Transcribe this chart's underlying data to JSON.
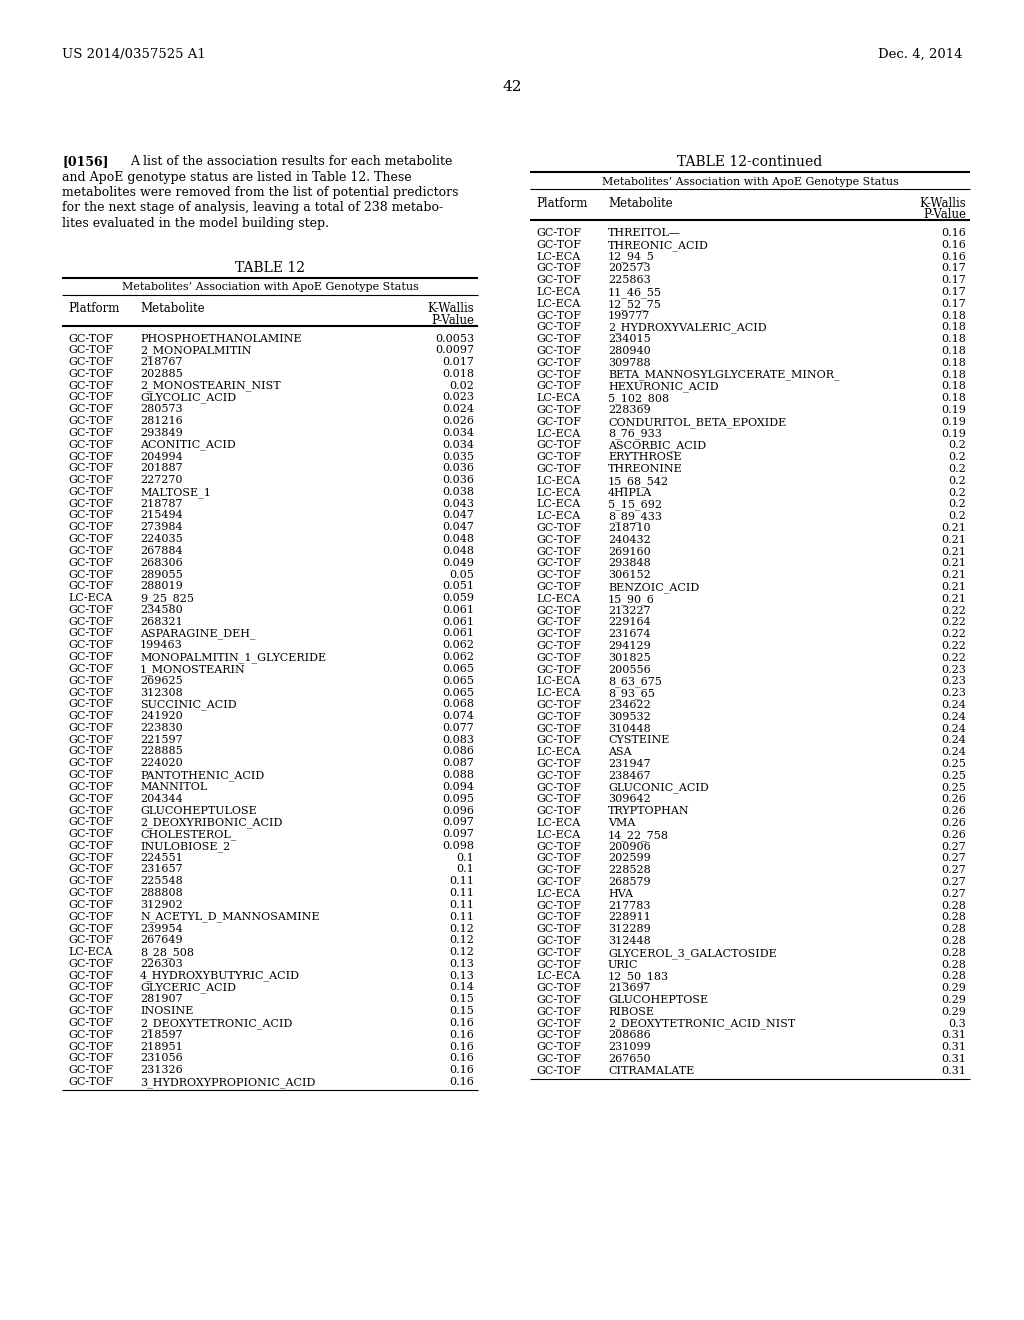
{
  "header_left": "US 2014/0357525 A1",
  "header_right": "Dec. 4, 2014",
  "page_number": "42",
  "paragraph_label": "[0156]",
  "paragraph_lines": [
    "A list of the association results for each metabolite",
    "and ApoE genotype status are listed in Table 12. These",
    "metabolites were removed from the list of potential predictors",
    "for the next stage of analysis, leaving a total of 238 metabo-",
    "lites evaluated in the model building step."
  ],
  "table1_title": "TABLE 12",
  "table1_subtitle": "Metabolites’ Association with ApoE Genotype Status",
  "table2_title": "TABLE 12-continued",
  "table2_subtitle": "Metabolites’ Association with ApoE Genotype Status",
  "table1_data": [
    [
      "GC-TOF",
      "PHOSPHOETHANOLAMINE",
      "0.0053"
    ],
    [
      "GC-TOF",
      "2_MONOPALMITIN",
      "0.0097"
    ],
    [
      "GC-TOF",
      "218767",
      "0.017"
    ],
    [
      "GC-TOF",
      "202885",
      "0.018"
    ],
    [
      "GC-TOF",
      "2_MONOSTEARIN_NIST",
      "0.02"
    ],
    [
      "GC-TOF",
      "GLYCOLIC_ACID",
      "0.023"
    ],
    [
      "GC-TOF",
      "280573",
      "0.024"
    ],
    [
      "GC-TOF",
      "281216",
      "0.026"
    ],
    [
      "GC-TOF",
      "293849",
      "0.034"
    ],
    [
      "GC-TOF",
      "ACONITIC_ACID",
      "0.034"
    ],
    [
      "GC-TOF",
      "204994",
      "0.035"
    ],
    [
      "GC-TOF",
      "201887",
      "0.036"
    ],
    [
      "GC-TOF",
      "227270",
      "0.036"
    ],
    [
      "GC-TOF",
      "MALTOSE_1",
      "0.038"
    ],
    [
      "GC-TOF",
      "218787",
      "0.043"
    ],
    [
      "GC-TOF",
      "215494",
      "0.047"
    ],
    [
      "GC-TOF",
      "273984",
      "0.047"
    ],
    [
      "GC-TOF",
      "224035",
      "0.048"
    ],
    [
      "GC-TOF",
      "267884",
      "0.048"
    ],
    [
      "GC-TOF",
      "268306",
      "0.049"
    ],
    [
      "GC-TOF",
      "289055",
      "0.05"
    ],
    [
      "GC-TOF",
      "288019",
      "0.051"
    ],
    [
      "LC-ECA",
      "9_25_825",
      "0.059"
    ],
    [
      "GC-TOF",
      "234580",
      "0.061"
    ],
    [
      "GC-TOF",
      "268321",
      "0.061"
    ],
    [
      "GC-TOF",
      "ASPARAGINE_DEH_",
      "0.061"
    ],
    [
      "GC-TOF",
      "199463",
      "0.062"
    ],
    [
      "GC-TOF",
      "MONOPALMITIN_1_GLYCERIDE",
      "0.062"
    ],
    [
      "GC-TOF",
      "1_MONOSTEARIN",
      "0.065"
    ],
    [
      "GC-TOF",
      "269625",
      "0.065"
    ],
    [
      "GC-TOF",
      "312308",
      "0.065"
    ],
    [
      "GC-TOF",
      "SUCCINIC_ACID",
      "0.068"
    ],
    [
      "GC-TOF",
      "241920",
      "0.074"
    ],
    [
      "GC-TOF",
      "223830",
      "0.077"
    ],
    [
      "GC-TOF",
      "221597",
      "0.083"
    ],
    [
      "GC-TOF",
      "228885",
      "0.086"
    ],
    [
      "GC-TOF",
      "224020",
      "0.087"
    ],
    [
      "GC-TOF",
      "PANTOTHENIC_ACID",
      "0.088"
    ],
    [
      "GC-TOF",
      "MANNITOL",
      "0.094"
    ],
    [
      "GC-TOF",
      "204344",
      "0.095"
    ],
    [
      "GC-TOF",
      "GLUCOHEPTULOSE",
      "0.096"
    ],
    [
      "GC-TOF",
      "2_DEOXYRIBONIC_ACID",
      "0.097"
    ],
    [
      "GC-TOF",
      "CHOLESTEROL_",
      "0.097"
    ],
    [
      "GC-TOF",
      "INULOBIOSE_2",
      "0.098"
    ],
    [
      "GC-TOF",
      "224551",
      "0.1"
    ],
    [
      "GC-TOF",
      "231657",
      "0.1"
    ],
    [
      "GC-TOF",
      "225548",
      "0.11"
    ],
    [
      "GC-TOF",
      "288808",
      "0.11"
    ],
    [
      "GC-TOF",
      "312902",
      "0.11"
    ],
    [
      "GC-TOF",
      "N_ACETYL_D_MANNOSAMINE",
      "0.11"
    ],
    [
      "GC-TOF",
      "239954",
      "0.12"
    ],
    [
      "GC-TOF",
      "267649",
      "0.12"
    ],
    [
      "LC-ECA",
      "8_28_508",
      "0.12"
    ],
    [
      "GC-TOF",
      "226303",
      "0.13"
    ],
    [
      "GC-TOF",
      "4_HYDROXYBUTYRIC_ACID",
      "0.13"
    ],
    [
      "GC-TOF",
      "GLYCERIC_ACID",
      "0.14"
    ],
    [
      "GC-TOF",
      "281907",
      "0.15"
    ],
    [
      "GC-TOF",
      "INOSINE",
      "0.15"
    ],
    [
      "GC-TOF",
      "2_DEOXYTETRONIC_ACID",
      "0.16"
    ],
    [
      "GC-TOF",
      "218597",
      "0.16"
    ],
    [
      "GC-TOF",
      "218951",
      "0.16"
    ],
    [
      "GC-TOF",
      "231056",
      "0.16"
    ],
    [
      "GC-TOF",
      "231326",
      "0.16"
    ],
    [
      "GC-TOF",
      "3_HYDROXYPROPIONIC_ACID",
      "0.16"
    ]
  ],
  "table2_data": [
    [
      "GC-TOF",
      "THREITOL—",
      "0.16"
    ],
    [
      "GC-TOF",
      "THREONIC_ACID",
      "0.16"
    ],
    [
      "LC-ECA",
      "12_94_5",
      "0.16"
    ],
    [
      "GC-TOF",
      "202573",
      "0.17"
    ],
    [
      "GC-TOF",
      "225863",
      "0.17"
    ],
    [
      "LC-ECA",
      "11_46_55",
      "0.17"
    ],
    [
      "LC-ECA",
      "12_52_75",
      "0.17"
    ],
    [
      "GC-TOF",
      "199777",
      "0.18"
    ],
    [
      "GC-TOF",
      "2_HYDROXYVALERIC_ACID",
      "0.18"
    ],
    [
      "GC-TOF",
      "234015",
      "0.18"
    ],
    [
      "GC-TOF",
      "280940",
      "0.18"
    ],
    [
      "GC-TOF",
      "309788",
      "0.18"
    ],
    [
      "GC-TOF",
      "BETA_MANNOSYLGLYCERATE_MINOR_",
      "0.18"
    ],
    [
      "GC-TOF",
      "HEXURONIC_ACID",
      "0.18"
    ],
    [
      "LC-ECA",
      "5_102_808",
      "0.18"
    ],
    [
      "GC-TOF",
      "228369",
      "0.19"
    ],
    [
      "GC-TOF",
      "CONDURITOL_BETA_EPOXIDE",
      "0.19"
    ],
    [
      "LC-ECA",
      "8_76_933",
      "0.19"
    ],
    [
      "GC-TOF",
      "ASCORBIC_ACID",
      "0.2"
    ],
    [
      "GC-TOF",
      "ERYTHROSE",
      "0.2"
    ],
    [
      "GC-TOF",
      "THREONINE",
      "0.2"
    ],
    [
      "LC-ECA",
      "15_68_542",
      "0.2"
    ],
    [
      "LC-ECA",
      "4HIPLA",
      "0.2"
    ],
    [
      "LC-ECA",
      "5_15_692",
      "0.2"
    ],
    [
      "LC-ECA",
      "8_89_433",
      "0.2"
    ],
    [
      "GC-TOF",
      "218710",
      "0.21"
    ],
    [
      "GC-TOF",
      "240432",
      "0.21"
    ],
    [
      "GC-TOF",
      "269160",
      "0.21"
    ],
    [
      "GC-TOF",
      "293848",
      "0.21"
    ],
    [
      "GC-TOF",
      "306152",
      "0.21"
    ],
    [
      "GC-TOF",
      "BENZOIC_ACID",
      "0.21"
    ],
    [
      "LC-ECA",
      "15_90_6",
      "0.21"
    ],
    [
      "GC-TOF",
      "213227",
      "0.22"
    ],
    [
      "GC-TOF",
      "229164",
      "0.22"
    ],
    [
      "GC-TOF",
      "231674",
      "0.22"
    ],
    [
      "GC-TOF",
      "294129",
      "0.22"
    ],
    [
      "GC-TOF",
      "301825",
      "0.22"
    ],
    [
      "GC-TOF",
      "200556",
      "0.23"
    ],
    [
      "LC-ECA",
      "8_63_675",
      "0.23"
    ],
    [
      "LC-ECA",
      "8_93_65",
      "0.23"
    ],
    [
      "GC-TOF",
      "234622",
      "0.24"
    ],
    [
      "GC-TOF",
      "309532",
      "0.24"
    ],
    [
      "GC-TOF",
      "310448",
      "0.24"
    ],
    [
      "GC-TOF",
      "CYSTEINE",
      "0.24"
    ],
    [
      "LC-ECA",
      "ASA",
      "0.24"
    ],
    [
      "GC-TOF",
      "231947",
      "0.25"
    ],
    [
      "GC-TOF",
      "238467",
      "0.25"
    ],
    [
      "GC-TOF",
      "GLUCONIC_ACID",
      "0.25"
    ],
    [
      "GC-TOF",
      "309642",
      "0.26"
    ],
    [
      "GC-TOF",
      "TRYPTOPHAN",
      "0.26"
    ],
    [
      "LC-ECA",
      "VMA",
      "0.26"
    ],
    [
      "LC-ECA",
      "14_22_758",
      "0.26"
    ],
    [
      "GC-TOF",
      "200906",
      "0.27"
    ],
    [
      "GC-TOF",
      "202599",
      "0.27"
    ],
    [
      "GC-TOF",
      "228528",
      "0.27"
    ],
    [
      "GC-TOF",
      "268579",
      "0.27"
    ],
    [
      "LC-ECA",
      "HVA",
      "0.27"
    ],
    [
      "GC-TOF",
      "217783",
      "0.28"
    ],
    [
      "GC-TOF",
      "228911",
      "0.28"
    ],
    [
      "GC-TOF",
      "312289",
      "0.28"
    ],
    [
      "GC-TOF",
      "312448",
      "0.28"
    ],
    [
      "GC-TOF",
      "GLYCEROL_3_GALACTOSIDE",
      "0.28"
    ],
    [
      "GC-TOF",
      "URIC",
      "0.28"
    ],
    [
      "LC-ECA",
      "12_50_183",
      "0.28"
    ],
    [
      "GC-TOF",
      "213697",
      "0.29"
    ],
    [
      "GC-TOF",
      "GLUCOHEPTOSE",
      "0.29"
    ],
    [
      "GC-TOF",
      "RIBOSE",
      "0.29"
    ],
    [
      "GC-TOF",
      "2_DEOXYTETRONIC_ACID_NIST",
      "0.3"
    ],
    [
      "GC-TOF",
      "208686",
      "0.31"
    ],
    [
      "GC-TOF",
      "231099",
      "0.31"
    ],
    [
      "GC-TOF",
      "267650",
      "0.31"
    ],
    [
      "GC-TOF",
      "CITRAMALATE",
      "0.31"
    ]
  ]
}
